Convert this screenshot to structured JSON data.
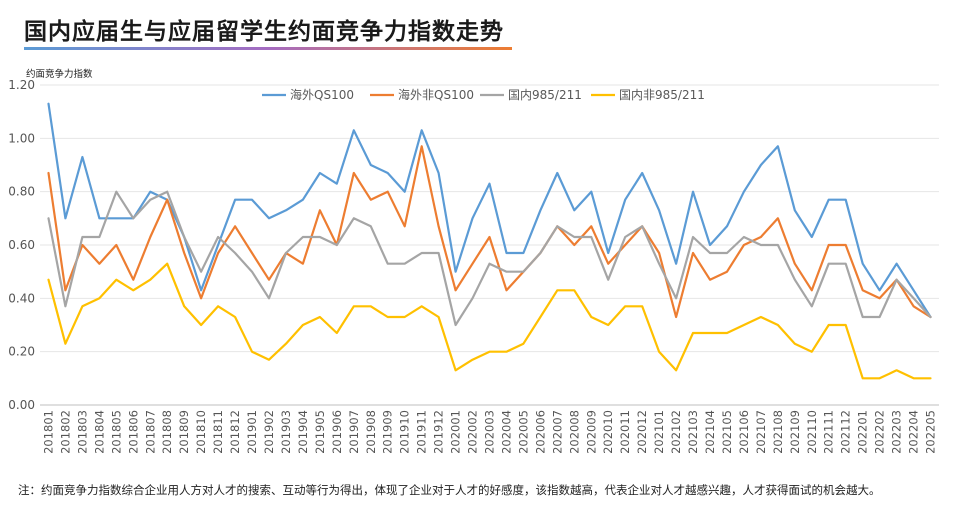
{
  "title": "国内应届生与应届留学生约面竞争力指数走势",
  "note": "注：约面竞争力指数综合企业用人方对人才的搜索、互动等行为得出，体现了企业对于人才的好感度，该指数越高，代表企业对人才越感兴趣，人才获得面试的机会越大。",
  "chart_data": {
    "type": "line",
    "title": "国内应届生与应届留学生约面竞争力指数走势",
    "ylabel": "约面竞争力指数",
    "xlabel": "",
    "ylim": [
      0,
      1.2
    ],
    "yticks": [
      "0.00",
      "0.20",
      "0.40",
      "0.60",
      "0.80",
      "1.00",
      "1.20"
    ],
    "grid": true,
    "legend_position": "top",
    "categories": [
      "201801",
      "201802",
      "201803",
      "201804",
      "201805",
      "201806",
      "201807",
      "201808",
      "201809",
      "201810",
      "201811",
      "201812",
      "201901",
      "201902",
      "201903",
      "201904",
      "201905",
      "201906",
      "201907",
      "201908",
      "201909",
      "201910",
      "201911",
      "201912",
      "202001",
      "202002",
      "202003",
      "202004",
      "202005",
      "202006",
      "202007",
      "202008",
      "202009",
      "202010",
      "202011",
      "202012",
      "202101",
      "202102",
      "202103",
      "202104",
      "202105",
      "202106",
      "202107",
      "202108",
      "202109",
      "202110",
      "202111",
      "202112",
      "202201",
      "202202",
      "202203",
      "202204",
      "202205"
    ],
    "series": [
      {
        "name": "海外QS100",
        "color": "#5b9bd5",
        "values": [
          1.13,
          0.7,
          0.93,
          0.7,
          0.7,
          0.7,
          0.8,
          0.77,
          0.63,
          0.43,
          0.6,
          0.77,
          0.77,
          0.7,
          0.73,
          0.77,
          0.87,
          0.83,
          1.03,
          0.9,
          0.87,
          0.8,
          1.03,
          0.87,
          0.5,
          0.7,
          0.83,
          0.57,
          0.57,
          0.73,
          0.87,
          0.73,
          0.8,
          0.57,
          0.77,
          0.87,
          0.73,
          0.53,
          0.8,
          0.6,
          0.67,
          0.8,
          0.9,
          0.97,
          0.73,
          0.63,
          0.77,
          0.77,
          0.53,
          0.43,
          0.53,
          0.43,
          0.33
        ]
      },
      {
        "name": "海外非QS100",
        "color": "#ed7d31",
        "values": [
          0.87,
          0.43,
          0.6,
          0.53,
          0.6,
          0.47,
          0.63,
          0.77,
          0.57,
          0.4,
          0.57,
          0.67,
          0.57,
          0.47,
          0.57,
          0.53,
          0.73,
          0.6,
          0.87,
          0.77,
          0.8,
          0.67,
          0.97,
          0.67,
          0.43,
          0.53,
          0.63,
          0.43,
          0.5,
          0.57,
          0.67,
          0.6,
          0.67,
          0.53,
          0.6,
          0.67,
          0.57,
          0.33,
          0.57,
          0.47,
          0.5,
          0.6,
          0.63,
          0.7,
          0.53,
          0.43,
          0.6,
          0.6,
          0.43,
          0.4,
          0.47,
          0.37,
          0.33
        ]
      },
      {
        "name": "国内985/211",
        "color": "#a5a5a5",
        "values": [
          0.7,
          0.37,
          0.63,
          0.63,
          0.8,
          0.7,
          0.77,
          0.8,
          0.63,
          0.5,
          0.63,
          0.57,
          0.5,
          0.4,
          0.57,
          0.63,
          0.63,
          0.6,
          0.7,
          0.67,
          0.53,
          0.53,
          0.57,
          0.57,
          0.3,
          0.4,
          0.53,
          0.5,
          0.5,
          0.57,
          0.67,
          0.63,
          0.63,
          0.47,
          0.63,
          0.67,
          0.53,
          0.4,
          0.63,
          0.57,
          0.57,
          0.63,
          0.6,
          0.6,
          0.47,
          0.37,
          0.53,
          0.53,
          0.33,
          0.33,
          0.47,
          0.4,
          0.33
        ]
      },
      {
        "name": "国内非985/211",
        "color": "#ffc000",
        "values": [
          0.47,
          0.23,
          0.37,
          0.4,
          0.47,
          0.43,
          0.47,
          0.53,
          0.37,
          0.3,
          0.37,
          0.33,
          0.2,
          0.17,
          0.23,
          0.3,
          0.33,
          0.27,
          0.37,
          0.37,
          0.33,
          0.33,
          0.37,
          0.33,
          0.13,
          0.17,
          0.2,
          0.2,
          0.23,
          0.33,
          0.43,
          0.43,
          0.33,
          0.3,
          0.37,
          0.37,
          0.2,
          0.13,
          0.27,
          0.27,
          0.27,
          0.3,
          0.33,
          0.3,
          0.23,
          0.2,
          0.3,
          0.3,
          0.1,
          0.1,
          0.13,
          0.1,
          0.1
        ]
      }
    ]
  }
}
